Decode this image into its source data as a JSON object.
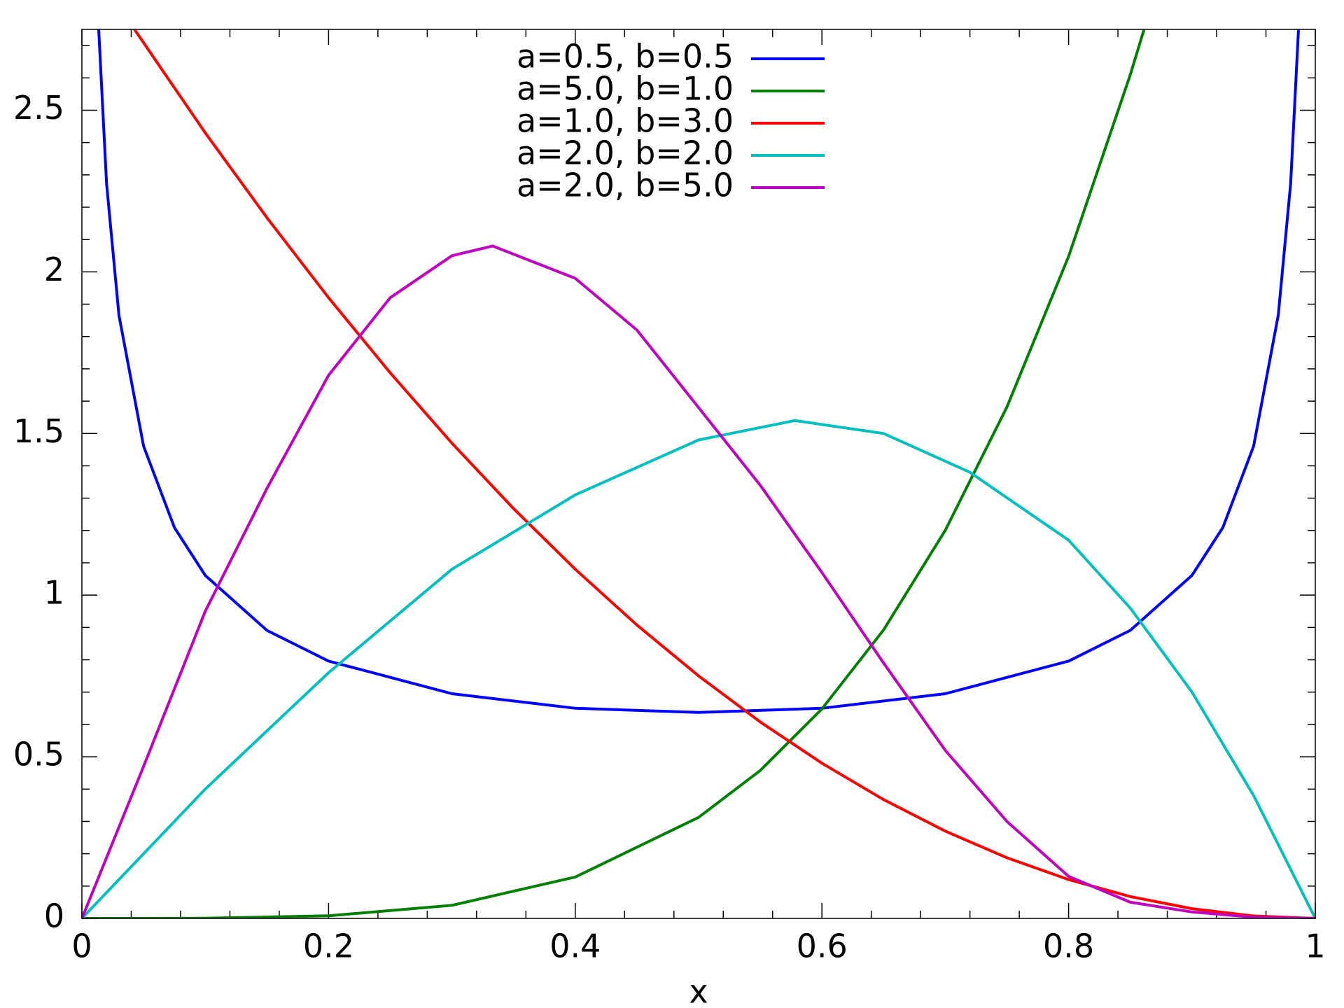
{
  "chart_data": {
    "type": "line",
    "xlabel": "x",
    "xlim": [
      0,
      1
    ],
    "ylim": [
      0,
      2.75
    ],
    "xticks": [
      0,
      0.2,
      0.4,
      0.6,
      0.8,
      1
    ],
    "yticks": [
      0,
      0.5,
      1,
      1.5,
      2,
      2.5
    ],
    "xminorticks": [
      0.04,
      0.08,
      0.12,
      0.16,
      0.24,
      0.28,
      0.32,
      0.36,
      0.44,
      0.48,
      0.52,
      0.56,
      0.64,
      0.68,
      0.72,
      0.76,
      0.84,
      0.88,
      0.92,
      0.96
    ],
    "yminorticks": [
      0.1,
      0.2,
      0.3,
      0.4,
      0.6,
      0.7,
      0.8,
      0.9,
      1.1,
      1.2,
      1.3,
      1.4,
      1.6,
      1.7,
      1.8,
      1.9,
      2.1,
      2.2,
      2.3,
      2.4,
      2.6,
      2.7
    ],
    "legend": "upper center",
    "series": [
      {
        "name": "a=0.5, b=0.5",
        "color": "#0000ff",
        "x": [
          0.0136,
          0.02,
          0.03,
          0.05,
          0.075,
          0.1,
          0.15,
          0.2,
          0.3,
          0.4,
          0.5,
          0.6,
          0.7,
          0.8,
          0.85,
          0.9,
          0.925,
          0.95,
          0.97,
          0.98,
          0.9864
        ],
        "values": [
          2.75,
          2.274,
          1.866,
          1.461,
          1.209,
          1.061,
          0.891,
          0.796,
          0.695,
          0.65,
          0.637,
          0.65,
          0.695,
          0.796,
          0.891,
          1.061,
          1.209,
          1.461,
          1.866,
          2.274,
          2.75
        ]
      },
      {
        "name": "a=5.0, b=1.0",
        "color": "#008000",
        "x": [
          0,
          0.1,
          0.2,
          0.3,
          0.4,
          0.5,
          0.55,
          0.6,
          0.65,
          0.7,
          0.75,
          0.8,
          0.85,
          0.8612
        ],
        "values": [
          0,
          0.0005,
          0.008,
          0.0405,
          0.128,
          0.3125,
          0.4575,
          0.648,
          0.8925,
          1.2005,
          1.582,
          2.048,
          2.61,
          2.75
        ]
      },
      {
        "name": "a=1.0, b=3.0",
        "color": "#ff0000",
        "x": [
          0.0426,
          0.1,
          0.15,
          0.2,
          0.25,
          0.3,
          0.35,
          0.4,
          0.45,
          0.5,
          0.55,
          0.6,
          0.65,
          0.7,
          0.75,
          0.8,
          0.85,
          0.9,
          0.95,
          1
        ],
        "values": [
          2.75,
          2.43,
          2.1675,
          1.92,
          1.6875,
          1.47,
          1.2675,
          1.08,
          0.9075,
          0.75,
          0.6075,
          0.48,
          0.3675,
          0.27,
          0.1875,
          0.12,
          0.0675,
          0.03,
          0.0075,
          0
        ]
      },
      {
        "name": "a=2.0, b=2.0",
        "color": "#00bfbf",
        "x": [
          0,
          0.1,
          0.2,
          0.3,
          0.4,
          0.5,
          0.578,
          0.65,
          0.72,
          0.8,
          0.85,
          0.9,
          0.95,
          1
        ],
        "values": [
          0,
          0.4,
          0.76,
          1.08,
          1.31,
          1.48,
          1.54,
          1.5,
          1.38,
          1.17,
          0.96,
          0.7,
          0.38,
          0
        ]
      },
      {
        "name": "a=2.0, b=5.0",
        "color": "#bf00bf",
        "x": [
          0,
          0.05,
          0.1,
          0.15,
          0.2,
          0.25,
          0.3,
          0.333,
          0.4,
          0.45,
          0.5,
          0.55,
          0.6,
          0.65,
          0.7,
          0.75,
          0.8,
          0.85,
          0.9,
          0.95,
          1
        ],
        "values": [
          0,
          0.47,
          0.95,
          1.33,
          1.68,
          1.92,
          2.05,
          2.08,
          1.98,
          1.82,
          1.58,
          1.34,
          1.07,
          0.79,
          0.52,
          0.3,
          0.13,
          0.05,
          0.02,
          0.004,
          0
        ]
      }
    ]
  }
}
